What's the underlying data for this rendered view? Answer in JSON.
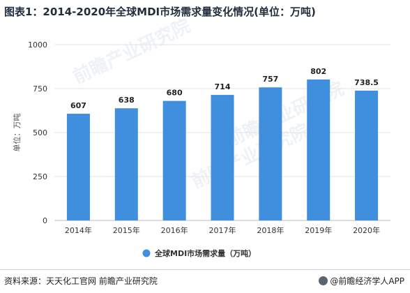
{
  "chart_data": {
    "type": "bar",
    "title": "图表1：2014-2020年全球MDI市场需求量变化情况(单位：万吨)",
    "categories": [
      "2014年",
      "2015年",
      "2016年",
      "2017年",
      "2018年",
      "2019年",
      "2020年"
    ],
    "series": [
      {
        "name": "全球MDI市场需求量（万吨）",
        "values": [
          607,
          638,
          680,
          714,
          757,
          802,
          738.5
        ]
      }
    ],
    "data_labels": [
      "607",
      "638",
      "680",
      "714",
      "757",
      "802",
      "738.5"
    ],
    "ylabel": "单位：万吨",
    "xlabel": "",
    "ylim": [
      0,
      1000
    ],
    "yticks": [
      0,
      250,
      500,
      750,
      1000
    ],
    "ytick_labels": [
      "0",
      "250",
      "500",
      "750",
      "1000"
    ],
    "grid": "horizontal",
    "legend_position": "bottom-center",
    "bar_color": "#3f8fde",
    "grid_color": "#e3e3e3"
  },
  "footer": {
    "source": "资料来源：天天化工官网 前瞻产业研究院",
    "brand": "@前瞻经济学人APP"
  },
  "watermark": "前瞻产业研究院"
}
